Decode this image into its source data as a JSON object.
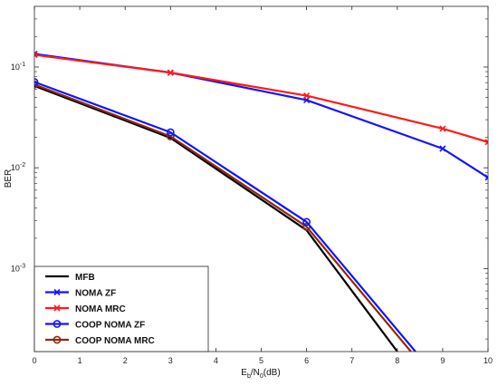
{
  "chart_data": {
    "type": "line",
    "xlabel": {
      "main": "E",
      "sub1": "b",
      "mid": "/N",
      "sub2": "0",
      "tail": "(dB)"
    },
    "ylabel": "BER",
    "xlim": [
      0,
      10
    ],
    "ylim": [
      0.00015,
      0.4
    ],
    "yscale": "log",
    "grid": false,
    "legend_position": "bottom-left",
    "xticks": [
      0,
      1,
      2,
      3,
      4,
      5,
      6,
      7,
      8,
      9,
      10
    ],
    "yticks": [
      {
        "value": 0.001,
        "base": "10",
        "exp": "-3"
      },
      {
        "value": 0.01,
        "base": "10",
        "exp": "-2"
      },
      {
        "value": 0.1,
        "base": "10",
        "exp": "-1"
      }
    ],
    "series": [
      {
        "name": "NOMA ZF",
        "color": "#1414ff",
        "marker": "x",
        "x": [
          0,
          3,
          6,
          9,
          10
        ],
        "y": [
          0.135,
          0.088,
          0.047,
          0.0155,
          0.008
        ]
      },
      {
        "name": "NOMA MRC",
        "color": "#ff1a1a",
        "marker": "x",
        "x": [
          0,
          3,
          6,
          9,
          10
        ],
        "y": [
          0.132,
          0.088,
          0.052,
          0.0245,
          0.018
        ]
      },
      {
        "name": "MFB",
        "color": "#000000",
        "marker": "none",
        "x": [
          0,
          3,
          6,
          8
        ],
        "y": [
          0.065,
          0.0198,
          0.0024,
          0.00015
        ]
      },
      {
        "name": "COOP NOMA MRC",
        "color": "#8b2a10",
        "marker": "o",
        "x": [
          0,
          3,
          6,
          8.3
        ],
        "y": [
          0.067,
          0.0205,
          0.0026,
          0.00015
        ]
      },
      {
        "name": "COOP NOMA ZF",
        "color": "#1414ff",
        "marker": "o",
        "x": [
          0,
          3,
          6,
          8.4
        ],
        "y": [
          0.071,
          0.0225,
          0.0029,
          0.00015
        ]
      }
    ],
    "legend_order": [
      "MFB",
      "NOMA ZF",
      "NOMA MRC",
      "COOP NOMA ZF",
      "COOP NOMA MRC"
    ]
  }
}
